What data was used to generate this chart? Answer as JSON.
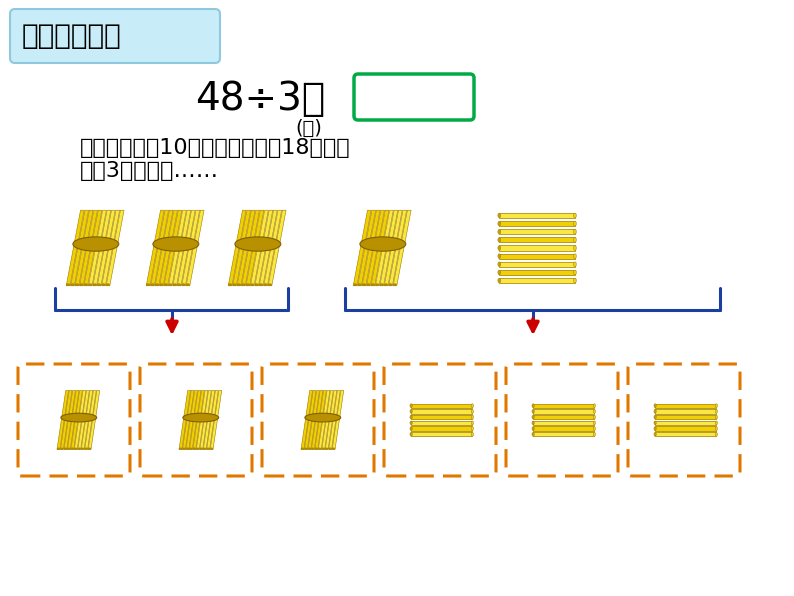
{
  "bg_color": "#ffffff",
  "title_text": "二、合作探究",
  "title_bg": "#c8ecf8",
  "title_border": "#90c8e0",
  "equation_text": "48÷3＝",
  "sub_text": "(枝)",
  "desc_line1": "先每个花瓶插10枝，再把剩下的18枝平均",
  "desc_line2": "插到3个花瓶中……",
  "answer_box_color": "#00aa44",
  "arrow_color": "#cc0000",
  "bracket_color": "#1a3fa0",
  "orange_border": "#e07800",
  "yellow_main": "#f0d000",
  "yellow_light": "#f8e840",
  "yellow_dark": "#b89000",
  "yellow_shadow": "#806000",
  "stick_edge": "#a07800"
}
